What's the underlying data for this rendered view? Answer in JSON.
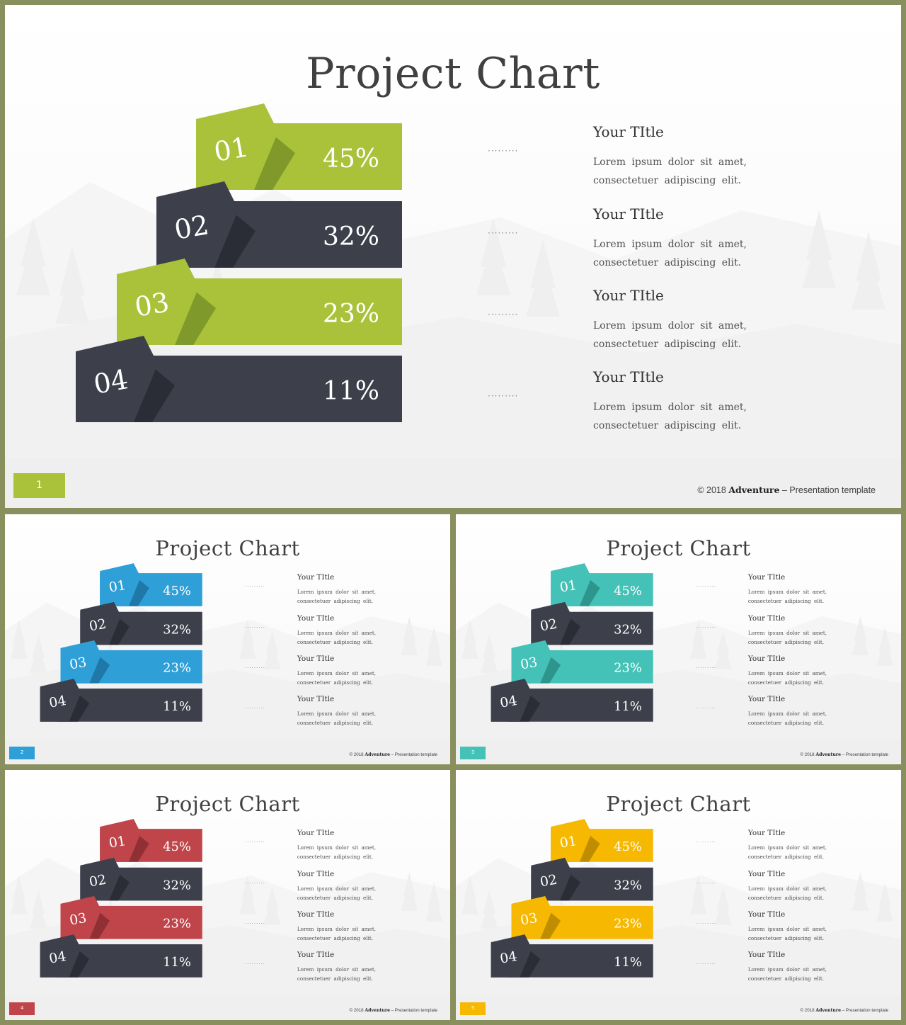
{
  "slides": [
    {
      "title": "Project Chart",
      "page_number": "1",
      "accent": "#a9c23a",
      "accent_shade": "#7f9a2b",
      "dark": "#3d3f4b",
      "dark_shade": "#2b2d36",
      "footer": {
        "copyright": "© 2018",
        "brand": "Adventure",
        "dash": " – ",
        "suffix": "Presentation template"
      },
      "dots": "·········",
      "items": [
        {
          "number": "01",
          "percent": "45%",
          "title": "Your TItle",
          "desc_line1": "Lorem ipsum dolor sit amet,",
          "desc_line2": "consectetuer adipiscing elit."
        },
        {
          "number": "02",
          "percent": "32%",
          "title": "Your TItle",
          "desc_line1": "Lorem ipsum dolor sit amet,",
          "desc_line2": "consectetuer adipiscing elit."
        },
        {
          "number": "03",
          "percent": "23%",
          "title": "Your TItle",
          "desc_line1": "Lorem ipsum dolor sit amet,",
          "desc_line2": "consectetuer adipiscing elit."
        },
        {
          "number": "04",
          "percent": "11%",
          "title": "Your TItle",
          "desc_line1": "Lorem ipsum dolor sit amet,",
          "desc_line2": "consectetuer adipiscing elit."
        }
      ]
    },
    {
      "title": "Project Chart",
      "page_number": "2",
      "accent": "#2f9fd8",
      "accent_shade": "#1f78a8",
      "dark": "#3d3f4b",
      "dark_shade": "#2b2d36",
      "footer": {
        "copyright": "© 2018",
        "brand": "Adventure",
        "dash": " – ",
        "suffix": "Presentation template"
      },
      "dots": "·········",
      "items": [
        {
          "number": "01",
          "percent": "45%",
          "title": "Your TItle",
          "desc_line1": "Lorem ipsum dolor sit amet,",
          "desc_line2": "consectetuer adipiscing elit."
        },
        {
          "number": "02",
          "percent": "32%",
          "title": "Your TItle",
          "desc_line1": "Lorem ipsum dolor sit amet,",
          "desc_line2": "consectetuer adipiscing elit."
        },
        {
          "number": "03",
          "percent": "23%",
          "title": "Your TItle",
          "desc_line1": "Lorem ipsum dolor sit amet,",
          "desc_line2": "consectetuer adipiscing elit."
        },
        {
          "number": "04",
          "percent": "11%",
          "title": "Your TItle",
          "desc_line1": "Lorem ipsum dolor sit amet,",
          "desc_line2": "consectetuer adipiscing elit."
        }
      ]
    },
    {
      "title": "Project Chart",
      "page_number": "3",
      "accent": "#45c2b8",
      "accent_shade": "#2e958c",
      "dark": "#3d3f4b",
      "dark_shade": "#2b2d36",
      "footer": {
        "copyright": "© 2018",
        "brand": "Adventure",
        "dash": " – ",
        "suffix": "Presentation template"
      },
      "dots": "·········",
      "items": [
        {
          "number": "01",
          "percent": "45%",
          "title": "Your TItle",
          "desc_line1": "Lorem ipsum dolor sit amet,",
          "desc_line2": "consectetuer adipiscing elit."
        },
        {
          "number": "02",
          "percent": "32%",
          "title": "Your TItle",
          "desc_line1": "Lorem ipsum dolor sit amet,",
          "desc_line2": "consectetuer adipiscing elit."
        },
        {
          "number": "03",
          "percent": "23%",
          "title": "Your TItle",
          "desc_line1": "Lorem ipsum dolor sit amet,",
          "desc_line2": "consectetuer adipiscing elit."
        },
        {
          "number": "04",
          "percent": "11%",
          "title": "Your TItle",
          "desc_line1": "Lorem ipsum dolor sit amet,",
          "desc_line2": "consectetuer adipiscing elit."
        }
      ]
    },
    {
      "title": "Project Chart",
      "page_number": "4",
      "accent": "#c0454a",
      "accent_shade": "#913034",
      "dark": "#3d3f4b",
      "dark_shade": "#2b2d36",
      "footer": {
        "copyright": "© 2018",
        "brand": "Adventure",
        "dash": " – ",
        "suffix": "Presentation template"
      },
      "dots": "·········",
      "items": [
        {
          "number": "01",
          "percent": "45%",
          "title": "Your TItle",
          "desc_line1": "Lorem ipsum dolor sit amet,",
          "desc_line2": "consectetuer adipiscing elit."
        },
        {
          "number": "02",
          "percent": "32%",
          "title": "Your TItle",
          "desc_line1": "Lorem ipsum dolor sit amet,",
          "desc_line2": "consectetuer adipiscing elit."
        },
        {
          "number": "03",
          "percent": "23%",
          "title": "Your TItle",
          "desc_line1": "Lorem ipsum dolor sit amet,",
          "desc_line2": "consectetuer adipiscing elit."
        },
        {
          "number": "04",
          "percent": "11%",
          "title": "Your TItle",
          "desc_line1": "Lorem ipsum dolor sit amet,",
          "desc_line2": "consectetuer adipiscing elit."
        }
      ]
    },
    {
      "title": "Project Chart",
      "page_number": "5",
      "accent": "#f6b800",
      "accent_shade": "#c08d00",
      "dark": "#3d3f4b",
      "dark_shade": "#2b2d36",
      "footer": {
        "copyright": "© 2018",
        "brand": "Adventure",
        "dash": " – ",
        "suffix": "Presentation template"
      },
      "dots": "·········",
      "items": [
        {
          "number": "01",
          "percent": "45%",
          "title": "Your TItle",
          "desc_line1": "Lorem ipsum dolor sit amet,",
          "desc_line2": "consectetuer adipiscing elit."
        },
        {
          "number": "02",
          "percent": "32%",
          "title": "Your TItle",
          "desc_line1": "Lorem ipsum dolor sit amet,",
          "desc_line2": "consectetuer adipiscing elit."
        },
        {
          "number": "03",
          "percent": "23%",
          "title": "Your TItle",
          "desc_line1": "Lorem ipsum dolor sit amet,",
          "desc_line2": "consectetuer adipiscing elit."
        },
        {
          "number": "04",
          "percent": "11%",
          "title": "Your TItle",
          "desc_line1": "Lorem ipsum dolor sit amet,",
          "desc_line2": "consectetuer adipiscing elit."
        }
      ]
    }
  ]
}
